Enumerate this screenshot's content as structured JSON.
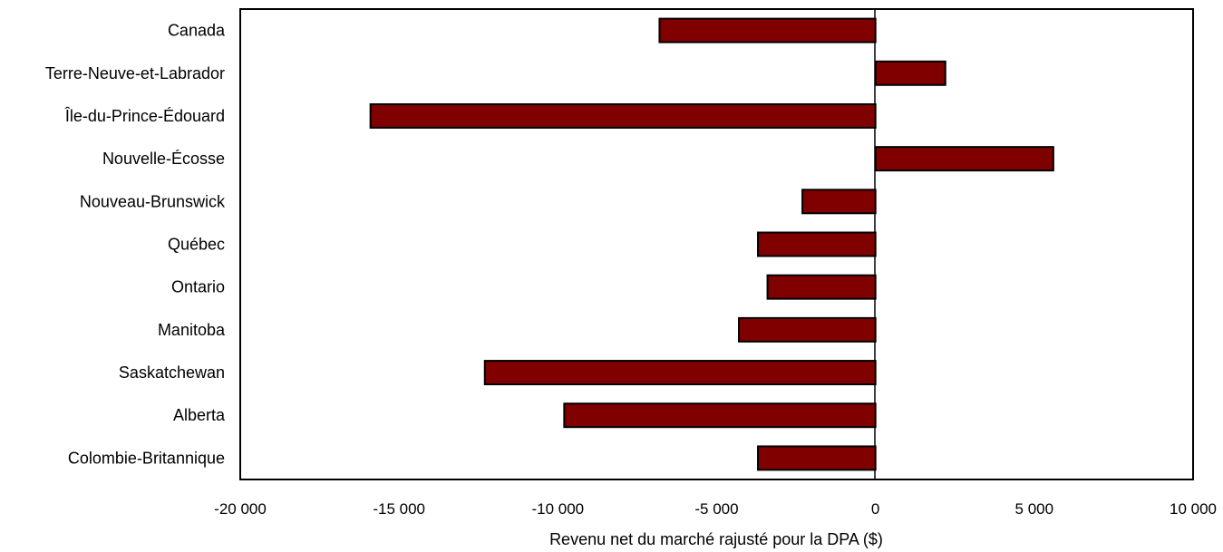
{
  "colors": {
    "bar_fill": "#800000",
    "bar_stroke": "#000000",
    "frame": "#000000"
  },
  "chart_data": {
    "type": "bar",
    "orientation": "horizontal",
    "categories": [
      "Canada",
      "Terre-Neuve-et-Labrador",
      "Île-du-Prince-Édouard",
      "Nouvelle-Écosse",
      "Nouveau-Brunswick",
      "Québec",
      "Ontario",
      "Manitoba",
      "Saskatchewan",
      "Alberta",
      "Colombie-Britannique"
    ],
    "values": [
      -6800,
      2200,
      -15900,
      5600,
      -2300,
      -3700,
      -3400,
      -4300,
      -12300,
      -9800,
      -3700
    ],
    "xlabel": "Revenu net du marché rajusté pour la DPA ($)",
    "ylabel": "",
    "xlim": [
      -20000,
      10000
    ],
    "xticks": [
      -20000,
      -15000,
      -10000,
      -5000,
      0,
      5000,
      10000
    ],
    "xtick_labels": [
      "-20 000",
      "-15 000",
      "-10 000",
      "-5 000",
      "0",
      "5 000",
      "10 000"
    ],
    "grid": false,
    "legend": "none"
  }
}
